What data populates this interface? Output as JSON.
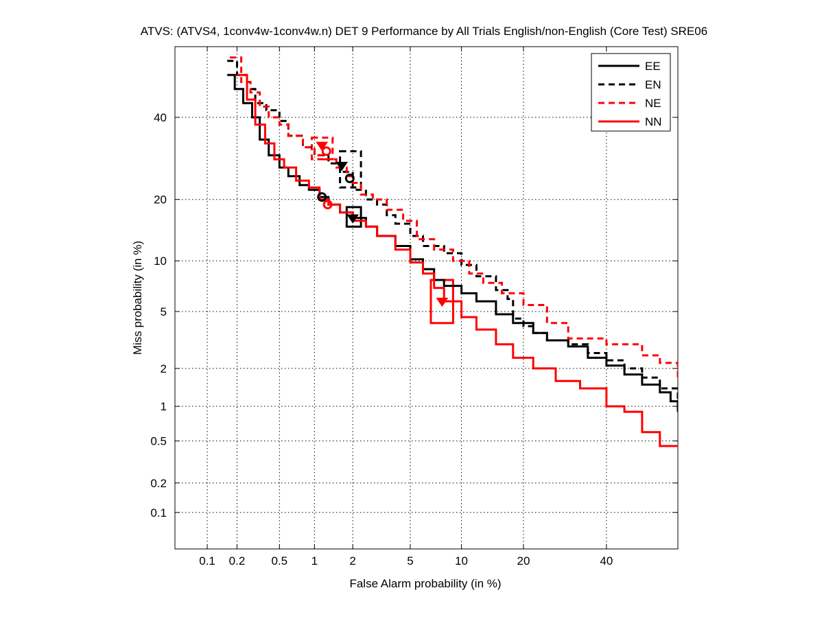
{
  "chart_data": {
    "type": "line",
    "title": "ATVS: (ATVS4, 1conv4w-1conv4w.n) DET 9 Performance by All Trials English/non-English (Core Test) SRE06",
    "xlabel": "False Alarm probability (in %)",
    "ylabel": "Miss probability (in %)",
    "x_scale": "probit",
    "y_scale": "probit",
    "xlim": [
      0.045,
      60
    ],
    "ylim": [
      0.04,
      60
    ],
    "xticks": [
      0.1,
      0.2,
      0.5,
      1,
      2,
      5,
      10,
      20,
      40
    ],
    "xtick_labels": [
      "0.1",
      "0.2",
      "0.5",
      "1",
      "2",
      "5",
      "10",
      "20",
      "40"
    ],
    "yticks": [
      0.1,
      0.2,
      0.5,
      1,
      2,
      5,
      10,
      20,
      40
    ],
    "ytick_labels": [
      "0.1",
      "0.2",
      "0.5",
      "1",
      "2",
      "5",
      "10",
      "20",
      "40"
    ],
    "grid": true,
    "legend_position": "top-right",
    "series": [
      {
        "name": "EE",
        "color": "#000000",
        "dash": "solid",
        "x": [
          0.16,
          0.19,
          0.23,
          0.28,
          0.33,
          0.4,
          0.5,
          0.6,
          0.75,
          0.9,
          1.1,
          1.3,
          1.6,
          2.0,
          2.5,
          3.0,
          4.0,
          5.0,
          6.0,
          7.0,
          8.0,
          10,
          12,
          15,
          18,
          22,
          25,
          30,
          35,
          40,
          45,
          50,
          55,
          58,
          60
        ],
        "y": [
          52,
          48,
          44,
          40,
          34,
          30,
          27,
          25,
          23,
          22,
          20.5,
          19,
          17.5,
          16.5,
          15,
          13.5,
          12,
          10.2,
          9,
          7.8,
          7.2,
          6.5,
          5.8,
          4.8,
          4.2,
          3.6,
          3.2,
          2.9,
          2.4,
          2.1,
          1.8,
          1.5,
          1.3,
          1.1,
          0.9
        ]
      },
      {
        "name": "EN",
        "color": "#000000",
        "dash": "dashed",
        "x": [
          0.16,
          0.2,
          0.25,
          0.3,
          0.38,
          0.5,
          0.6,
          0.8,
          1.0,
          1.3,
          1.6,
          2.0,
          2.5,
          3.0,
          3.5,
          4.0,
          5.0,
          6.0,
          8.0,
          10,
          12,
          15,
          17,
          18,
          20,
          22,
          25,
          30,
          35,
          40,
          45,
          50,
          55,
          60
        ],
        "y": [
          56,
          52,
          48,
          44,
          42,
          39,
          35,
          32,
          30,
          28,
          26,
          22,
          20,
          19,
          17,
          15.5,
          13.5,
          12,
          11,
          9.5,
          8.2,
          6.8,
          6.0,
          4.5,
          4.0,
          3.6,
          3.2,
          3.0,
          2.6,
          2.3,
          2.0,
          1.7,
          1.4,
          0.9
        ]
      },
      {
        "name": "NE",
        "color": "#ff0000",
        "dash": "dashed",
        "x": [
          0.17,
          0.22,
          0.27,
          0.33,
          0.4,
          0.5,
          0.6,
          0.8,
          1.0,
          1.2,
          1.5,
          1.8,
          2.0,
          2.3,
          2.8,
          3.5,
          4.5,
          5.5,
          7.0,
          9.0,
          11,
          13,
          16,
          20,
          25,
          30,
          40,
          50,
          55,
          60
        ],
        "y": [
          57,
          50,
          47,
          43,
          40,
          38,
          35,
          32,
          30,
          29,
          27,
          25,
          23.5,
          21,
          20,
          18,
          16,
          13,
          11.5,
          10,
          8.5,
          7.5,
          6.5,
          5.5,
          4.2,
          3.3,
          3.0,
          2.5,
          2.2,
          1.7
        ]
      },
      {
        "name": "NN",
        "color": "#ff0000",
        "dash": "solid",
        "x": [
          0.2,
          0.25,
          0.3,
          0.37,
          0.45,
          0.55,
          0.7,
          0.9,
          1.1,
          1.3,
          1.6,
          2.0,
          2.5,
          3.0,
          4.0,
          5.0,
          6.0,
          7.0,
          8.0,
          10,
          12,
          15,
          18,
          22,
          27,
          33,
          40,
          45,
          50,
          55,
          60
        ],
        "y": [
          52,
          45,
          38,
          33,
          29,
          27,
          24,
          22.5,
          20,
          19,
          17.5,
          16,
          15,
          13.5,
          11.5,
          9.8,
          8.5,
          7.0,
          5.8,
          4.6,
          3.8,
          3.0,
          2.4,
          2.0,
          1.6,
          1.4,
          1.0,
          0.9,
          0.6,
          0.45,
          0.45
        ]
      }
    ],
    "markers": [
      {
        "series": "EE",
        "shape": "circle",
        "x": 1.15,
        "y": 20.5
      },
      {
        "series": "EE",
        "shape": "triangle",
        "x": 2.0,
        "y": 16.5
      },
      {
        "series": "EN",
        "shape": "circle",
        "x": 1.9,
        "y": 24.5
      },
      {
        "series": "EN",
        "shape": "triangle",
        "x": 1.65,
        "y": 27.5
      },
      {
        "series": "NE",
        "shape": "circle",
        "x": 1.25,
        "y": 31
      },
      {
        "series": "NE",
        "shape": "triangle",
        "x": 1.15,
        "y": 32.5
      },
      {
        "series": "NN",
        "shape": "circle",
        "x": 1.28,
        "y": 19
      },
      {
        "series": "NN",
        "shape": "triangle",
        "x": 7.8,
        "y": 5.8
      }
    ],
    "confidence_boxes": [
      {
        "series": "EE",
        "x": [
          1.8,
          2.3
        ],
        "y": [
          15,
          18.5
        ]
      },
      {
        "series": "EN",
        "x": [
          1.6,
          2.3
        ],
        "y": [
          22.5,
          31
        ]
      },
      {
        "series": "NE",
        "x": [
          0.95,
          1.4
        ],
        "y": [
          29,
          34.5
        ]
      },
      {
        "series": "NN",
        "x": [
          6.7,
          9.0
        ],
        "y": [
          4.2,
          7.8
        ]
      }
    ]
  }
}
